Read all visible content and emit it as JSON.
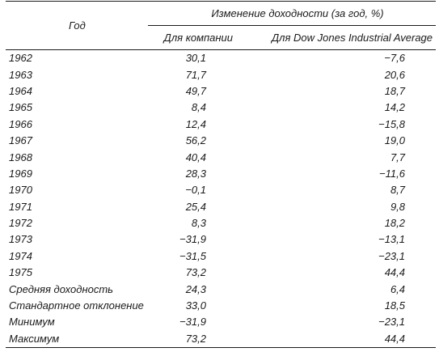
{
  "table": {
    "group_header": "Изменение доходности (за год, %)",
    "columns": [
      "Год",
      "Для компании",
      "Для Dow Jones Industrial Average"
    ],
    "rows": [
      {
        "label": "1962",
        "company": "30,1",
        "dow": "−7,6"
      },
      {
        "label": "1963",
        "company": "71,7",
        "dow": "20,6"
      },
      {
        "label": "1964",
        "company": "49,7",
        "dow": "18,7"
      },
      {
        "label": "1965",
        "company": "8,4",
        "dow": "14,2"
      },
      {
        "label": "1966",
        "company": "12,4",
        "dow": "−15,8"
      },
      {
        "label": "1967",
        "company": "56,2",
        "dow": "19,0"
      },
      {
        "label": "1968",
        "company": "40,4",
        "dow": "7,7"
      },
      {
        "label": "1969",
        "company": "28,3",
        "dow": "−11,6"
      },
      {
        "label": "1970",
        "company": "−0,1",
        "dow": "8,7"
      },
      {
        "label": "1971",
        "company": "25,4",
        "dow": "9,8"
      },
      {
        "label": "1972",
        "company": "8,3",
        "dow": "18,2"
      },
      {
        "label": "1973",
        "company": "−31,9",
        "dow": "−13,1"
      },
      {
        "label": "1974",
        "company": "−31,5",
        "dow": "−23,1"
      },
      {
        "label": "1975",
        "company": "73,2",
        "dow": "44,4"
      },
      {
        "label": "Средняя доходность",
        "company": "24,3",
        "dow": "6,4"
      },
      {
        "label": "Стандартное отклонение",
        "company": "33,0",
        "dow": "18,5"
      },
      {
        "label": "Минимум",
        "company": "−31,9",
        "dow": "−23,1"
      },
      {
        "label": "Максимум",
        "company": "73,2",
        "dow": "44,4"
      }
    ]
  }
}
